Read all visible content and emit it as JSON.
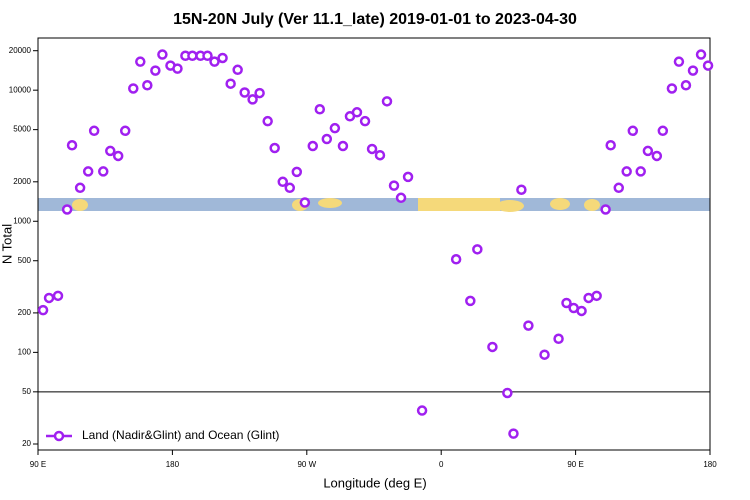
{
  "chart_data": {
    "type": "scatter",
    "title": "15N-20N July (Ver 11.1_late)   2019-01-01 to 2023-04-30",
    "x_label": "Longitude (deg E)",
    "y_label": "N Total",
    "log_y": true,
    "legend_position": "bottom-left",
    "reference_line": 50,
    "xlim": [
      90,
      540
    ],
    "xticks": [
      {
        "value": 90,
        "label": "90 E"
      },
      {
        "value": 180,
        "label": "180"
      },
      {
        "value": 270,
        "label": "90 W"
      },
      {
        "value": 360,
        "label": "0"
      },
      {
        "value": 450,
        "label": "90 E"
      },
      {
        "value": 540,
        "label": "180"
      }
    ],
    "ylim": [
      18,
      25000
    ],
    "yticks": [
      20,
      50,
      100,
      200,
      500,
      1000,
      2000,
      5000,
      10000,
      20000
    ],
    "series": [
      {
        "name": "Land (Nadir&Glint) and Ocean (Glint)",
        "color": "#a020f0",
        "x": [
          93.4,
          97.4,
          103.4,
          109.5,
          112.8,
          118.2,
          123.6,
          127.6,
          133.7,
          138.4,
          143.7,
          148.4,
          153.8,
          158.5,
          163.2,
          168.6,
          173.3,
          178.7,
          183.4,
          188.7,
          193.4,
          198.8,
          203.5,
          208.2,
          213.6,
          219.0,
          223.7,
          228.4,
          233.7,
          238.4,
          243.8,
          248.5,
          253.9,
          258.6,
          263.3,
          268.7,
          274.0,
          278.7,
          283.4,
          288.8,
          294.2,
          298.9,
          303.6,
          309.0,
          313.7,
          319.0,
          323.7,
          328.4,
          333.1,
          337.8,
          347.2,
          370.0,
          379.5,
          384.2,
          394.3,
          404.3,
          408.4,
          413.7,
          418.4,
          429.2,
          438.6,
          443.9,
          448.7,
          454.0,
          458.7,
          464.1,
          470.1,
          473.5,
          478.9,
          484.2,
          488.3,
          493.6,
          498.4,
          504.4,
          508.4,
          514.5,
          519.2,
          523.9,
          528.6,
          534.0,
          538.7
        ],
        "values": [
          210,
          260,
          270,
          1230,
          3800,
          1800,
          2400,
          4900,
          2400,
          3440,
          3150,
          4900,
          10300,
          16500,
          10900,
          14100,
          18700,
          15400,
          14600,
          18300,
          18300,
          18300,
          18300,
          16500,
          17600,
          11200,
          14300,
          9600,
          8500,
          9500,
          5800,
          3620,
          2000,
          1800,
          2380,
          1390,
          3750,
          7150,
          4240,
          5130,
          3750,
          6320,
          6780,
          5800,
          3560,
          3190,
          8220,
          1870,
          1510,
          2180,
          36,
          513,
          247,
          611,
          110,
          49,
          24,
          1740,
          160,
          96,
          127,
          238,
          218,
          207,
          260,
          270,
          1230,
          3800,
          1800,
          2400,
          4900,
          2400,
          3440,
          3150,
          4900,
          10300,
          16500,
          10900,
          14100,
          18700,
          15400
        ]
      }
    ]
  }
}
